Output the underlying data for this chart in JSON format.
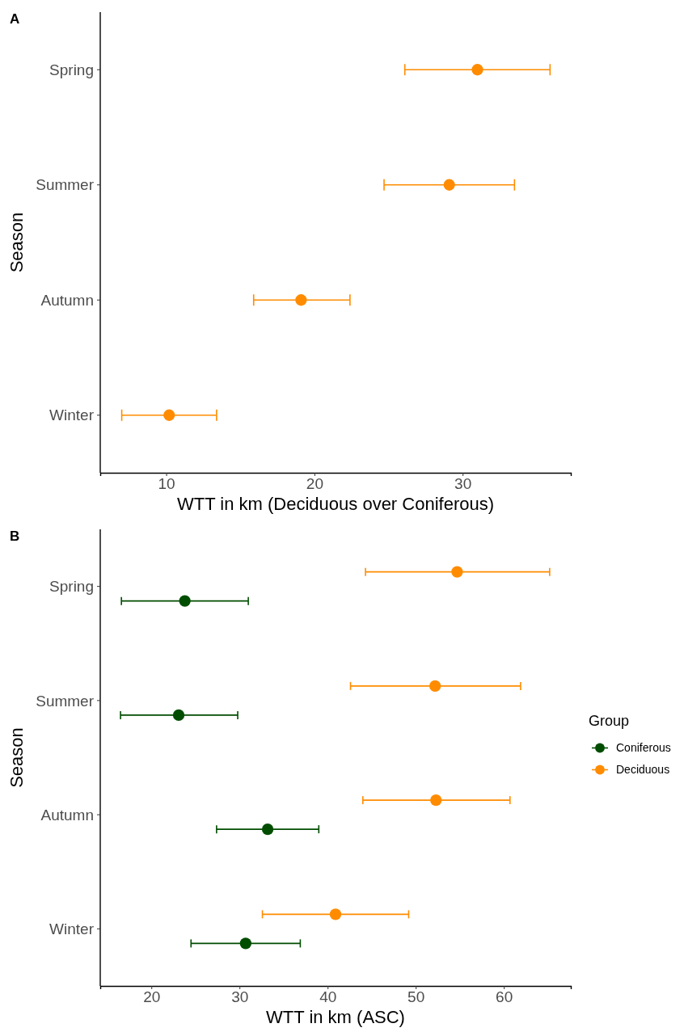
{
  "chart_data": [
    {
      "type": "scatter",
      "title": "A",
      "orientation": "horizontal",
      "xlabel": "WTT in km (Deciduous over Coniferous)",
      "ylabel": "Season",
      "categories": [
        "Spring",
        "Summer",
        "Autumn",
        "Winter"
      ],
      "xlim": [
        5.55,
        37.3
      ],
      "xticks": [
        10,
        20,
        30
      ],
      "marker": "circle",
      "grid": false,
      "legend": false,
      "series": [
        {
          "color": "#ff8c00",
          "values": [
            31.0,
            29.1,
            19.1,
            10.2
          ],
          "errors": [
            [
              26.1,
              35.9
            ],
            [
              24.7,
              33.5
            ],
            [
              15.9,
              22.4
            ],
            [
              7.0,
              13.4
            ]
          ]
        }
      ]
    },
    {
      "type": "scatter",
      "title": "B",
      "orientation": "horizontal",
      "xlabel": "WTT in km (ASC)",
      "ylabel": "Season",
      "legend_title": "Group",
      "categories": [
        "Spring",
        "Summer",
        "Autumn",
        "Winter"
      ],
      "xlim": [
        14.2,
        67.6
      ],
      "xticks": [
        20,
        30,
        40,
        50,
        60
      ],
      "marker": "circle",
      "grid": false,
      "legend": "right",
      "series": [
        {
          "name": "Coniferous",
          "color": "#004d00",
          "values": [
            23.8,
            23.1,
            33.2,
            30.7
          ],
          "errors": [
            [
              16.6,
              31.0
            ],
            [
              16.5,
              29.8
            ],
            [
              27.4,
              39.0
            ],
            [
              24.5,
              36.9
            ]
          ]
        },
        {
          "name": "Deciduous",
          "color": "#ff8c00",
          "values": [
            54.7,
            52.2,
            52.3,
            40.9
          ],
          "errors": [
            [
              44.3,
              65.2
            ],
            [
              42.6,
              61.9
            ],
            [
              44.0,
              60.7
            ],
            [
              32.6,
              49.2
            ]
          ]
        }
      ]
    }
  ]
}
